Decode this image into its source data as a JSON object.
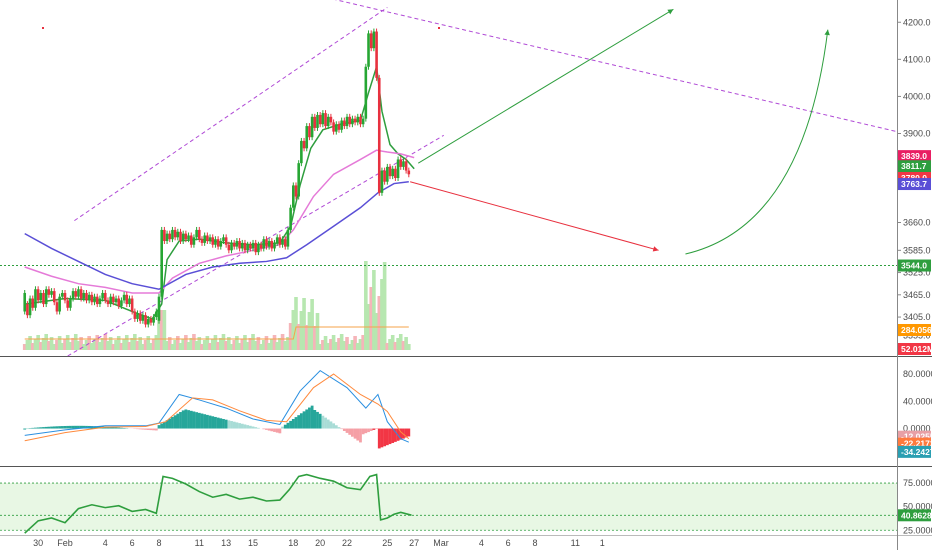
{
  "chart_data": [
    {
      "type": "candlestick",
      "panel": "price",
      "ylim": [
        3300,
        4260
      ],
      "y_ticks": [
        "4200.0",
        "4100.0",
        "4000.0",
        "3900.0",
        "3660.0",
        "3585.0",
        "3525.0",
        "3465.0",
        "3405.0",
        "3355.0"
      ],
      "y_tick_values": [
        4200,
        4100,
        4000,
        3900,
        3660,
        3585,
        3525,
        3465,
        3405,
        3355
      ],
      "x_labels": [
        "30",
        "Feb",
        "4",
        "6",
        "8",
        "11",
        "13",
        "15",
        "18",
        "20",
        "22",
        "25",
        "27",
        "Mar",
        "4",
        "6",
        "8",
        "11",
        "1"
      ],
      "x_label_days": [
        -2,
        0,
        3,
        5,
        7,
        10,
        12,
        14,
        17,
        19,
        21,
        24,
        26,
        28,
        31,
        33,
        35,
        38,
        40
      ],
      "candles": [
        [
          -3.0,
          3420,
          3470
        ],
        [
          -2.8,
          3440,
          3410
        ],
        [
          -2.6,
          3410,
          3455
        ],
        [
          -2.4,
          3455,
          3430
        ],
        [
          -2.2,
          3430,
          3480
        ],
        [
          -2.0,
          3480,
          3450
        ],
        [
          -1.8,
          3450,
          3470
        ],
        [
          -1.6,
          3470,
          3440
        ],
        [
          -1.4,
          3440,
          3480
        ],
        [
          -1.2,
          3480,
          3465
        ],
        [
          -1.0,
          3465,
          3475
        ],
        [
          -0.8,
          3475,
          3445
        ],
        [
          -0.6,
          3445,
          3420
        ],
        [
          -0.4,
          3420,
          3460
        ],
        [
          -0.2,
          3460,
          3470
        ],
        [
          0.0,
          3470,
          3450
        ],
        [
          0.2,
          3450,
          3430
        ],
        [
          0.4,
          3430,
          3455
        ],
        [
          0.6,
          3455,
          3475
        ],
        [
          0.8,
          3475,
          3460
        ],
        [
          1.0,
          3460,
          3480
        ],
        [
          1.2,
          3480,
          3455
        ],
        [
          1.4,
          3455,
          3470
        ],
        [
          1.6,
          3470,
          3450
        ],
        [
          1.8,
          3450,
          3465
        ],
        [
          2.0,
          3465,
          3445
        ],
        [
          2.2,
          3445,
          3460
        ],
        [
          2.4,
          3460,
          3440
        ],
        [
          2.6,
          3440,
          3455
        ],
        [
          2.8,
          3455,
          3470
        ],
        [
          3.0,
          3470,
          3450
        ],
        [
          3.2,
          3450,
          3440
        ],
        [
          3.4,
          3440,
          3460
        ],
        [
          3.6,
          3460,
          3445
        ],
        [
          3.8,
          3445,
          3455
        ],
        [
          4.0,
          3455,
          3435
        ],
        [
          4.2,
          3435,
          3450
        ],
        [
          4.4,
          3450,
          3465
        ],
        [
          4.6,
          3465,
          3440
        ],
        [
          4.8,
          3440,
          3455
        ],
        [
          5.0,
          3455,
          3420
        ],
        [
          5.2,
          3420,
          3400
        ],
        [
          5.4,
          3400,
          3415
        ],
        [
          5.6,
          3415,
          3395
        ],
        [
          5.8,
          3395,
          3410
        ],
        [
          6.0,
          3410,
          3385
        ],
        [
          6.2,
          3385,
          3400
        ],
        [
          6.4,
          3400,
          3390
        ],
        [
          6.6,
          3390,
          3405
        ],
        [
          6.8,
          3405,
          3420
        ],
        [
          7.0,
          3395,
          3460
        ],
        [
          7.2,
          3460,
          3640
        ],
        [
          7.4,
          3640,
          3610
        ],
        [
          7.6,
          3610,
          3630
        ],
        [
          7.8,
          3630,
          3615
        ],
        [
          8.0,
          3615,
          3640
        ],
        [
          8.2,
          3640,
          3620
        ],
        [
          8.4,
          3620,
          3635
        ],
        [
          8.6,
          3635,
          3610
        ],
        [
          8.8,
          3610,
          3630
        ],
        [
          9.0,
          3630,
          3615
        ],
        [
          9.2,
          3615,
          3625
        ],
        [
          9.4,
          3625,
          3600
        ],
        [
          9.6,
          3600,
          3620
        ],
        [
          9.8,
          3620,
          3640
        ],
        [
          10.0,
          3640,
          3615
        ],
        [
          10.2,
          3615,
          3605
        ],
        [
          10.4,
          3605,
          3625
        ],
        [
          10.6,
          3625,
          3610
        ],
        [
          10.8,
          3610,
          3620
        ],
        [
          11.0,
          3620,
          3600
        ],
        [
          11.2,
          3600,
          3615
        ],
        [
          11.4,
          3615,
          3595
        ],
        [
          11.6,
          3595,
          3610
        ],
        [
          11.8,
          3610,
          3620
        ],
        [
          12.0,
          3620,
          3600
        ],
        [
          12.2,
          3600,
          3585
        ],
        [
          12.4,
          3585,
          3605
        ],
        [
          12.6,
          3605,
          3595
        ],
        [
          12.8,
          3595,
          3610
        ],
        [
          13.0,
          3610,
          3590
        ],
        [
          13.2,
          3590,
          3605
        ],
        [
          13.4,
          3605,
          3585
        ],
        [
          13.6,
          3585,
          3600
        ],
        [
          13.8,
          3600,
          3590
        ],
        [
          14.0,
          3590,
          3605
        ],
        [
          14.2,
          3605,
          3580
        ],
        [
          14.4,
          3580,
          3600
        ],
        [
          14.6,
          3600,
          3590
        ],
        [
          14.8,
          3590,
          3615
        ],
        [
          15.0,
          3615,
          3595
        ],
        [
          15.2,
          3595,
          3610
        ],
        [
          15.4,
          3610,
          3590
        ],
        [
          15.6,
          3590,
          3605
        ],
        [
          15.8,
          3605,
          3620
        ],
        [
          16.0,
          3620,
          3600
        ],
        [
          16.2,
          3600,
          3615
        ],
        [
          16.4,
          3615,
          3595
        ],
        [
          16.6,
          3595,
          3640
        ],
        [
          16.8,
          3640,
          3700
        ],
        [
          17.0,
          3700,
          3760
        ],
        [
          17.2,
          3760,
          3730
        ],
        [
          17.4,
          3730,
          3820
        ],
        [
          17.6,
          3820,
          3880
        ],
        [
          17.8,
          3880,
          3860
        ],
        [
          18.0,
          3860,
          3920
        ],
        [
          18.2,
          3920,
          3890
        ],
        [
          18.4,
          3890,
          3945
        ],
        [
          18.6,
          3945,
          3915
        ],
        [
          18.8,
          3915,
          3950
        ],
        [
          19.0,
          3950,
          3925
        ],
        [
          19.2,
          3925,
          3955
        ],
        [
          19.4,
          3955,
          3920
        ],
        [
          19.6,
          3920,
          3945
        ],
        [
          19.8,
          3945,
          3930
        ],
        [
          20.0,
          3930,
          3905
        ],
        [
          20.2,
          3905,
          3925
        ],
        [
          20.4,
          3925,
          3910
        ],
        [
          20.6,
          3910,
          3935
        ],
        [
          20.8,
          3935,
          3920
        ],
        [
          21.0,
          3920,
          3945
        ],
        [
          21.2,
          3945,
          3925
        ],
        [
          21.4,
          3925,
          3940
        ],
        [
          21.6,
          3940,
          3930
        ],
        [
          21.8,
          3930,
          3945
        ],
        [
          22.0,
          3945,
          3925
        ],
        [
          22.2,
          3925,
          3940
        ],
        [
          22.4,
          3940,
          4080
        ],
        [
          22.6,
          4080,
          4170
        ],
        [
          22.8,
          4170,
          4130
        ],
        [
          23.0,
          4130,
          4175
        ],
        [
          23.2,
          4175,
          4050
        ],
        [
          23.4,
          4050,
          3740
        ],
        [
          23.6,
          3740,
          3800
        ],
        [
          23.8,
          3800,
          3770
        ],
        [
          24.0,
          3770,
          3810
        ],
        [
          24.2,
          3810,
          3785
        ],
        [
          24.4,
          3785,
          3805
        ],
        [
          24.6,
          3805,
          3780
        ],
        [
          24.8,
          3780,
          3830
        ],
        [
          25.0,
          3830,
          3810
        ],
        [
          25.2,
          3810,
          3825
        ],
        [
          25.4,
          3825,
          3800
        ],
        [
          25.6,
          3800,
          3790
        ]
      ],
      "series": [
        {
          "name": "",
          "color": "#2e9e3e",
          "points": [
            [
              -3,
              3440
            ],
            [
              0,
              3455
            ],
            [
              3,
              3450
            ],
            [
              5,
              3420
            ],
            [
              6.5,
              3400
            ],
            [
              7.2,
              3440
            ],
            [
              7.6,
              3560
            ],
            [
              8.5,
              3610
            ],
            [
              10,
              3615
            ],
            [
              12,
              3605
            ],
            [
              14,
              3600
            ],
            [
              16,
              3605
            ],
            [
              16.8,
              3650
            ],
            [
              17.5,
              3760
            ],
            [
              18.3,
              3860
            ],
            [
              19.2,
              3910
            ],
            [
              20.5,
              3925
            ],
            [
              22,
              3935
            ],
            [
              22.6,
              4010
            ],
            [
              23.2,
              4080
            ],
            [
              23.6,
              3960
            ],
            [
              24.2,
              3870
            ],
            [
              24.8,
              3845
            ],
            [
              25.4,
              3830
            ],
            [
              26,
              3805
            ]
          ]
        },
        {
          "name": "",
          "color": "#e57ad8",
          "points": [
            [
              -3,
              3540
            ],
            [
              -1,
              3515
            ],
            [
              1,
              3495
            ],
            [
              3,
              3485
            ],
            [
              5,
              3470
            ],
            [
              7,
              3470
            ],
            [
              8,
              3510
            ],
            [
              10,
              3550
            ],
            [
              12,
              3570
            ],
            [
              14,
              3585
            ],
            [
              16,
              3600
            ],
            [
              17,
              3640
            ],
            [
              18.5,
              3730
            ],
            [
              20,
              3790
            ],
            [
              22,
              3830
            ],
            [
              23.2,
              3855
            ],
            [
              24,
              3850
            ],
            [
              25,
              3845
            ],
            [
              26,
              3835
            ]
          ]
        },
        {
          "name": "",
          "color": "#5a4fd6",
          "points": [
            [
              -3,
              3630
            ],
            [
              -1,
              3590
            ],
            [
              1,
              3555
            ],
            [
              3,
              3520
            ],
            [
              5,
              3495
            ],
            [
              7,
              3480
            ],
            [
              9,
              3520
            ],
            [
              11,
              3540
            ],
            [
              13,
              3550
            ],
            [
              15,
              3555
            ],
            [
              16.5,
              3565
            ],
            [
              18,
              3600
            ],
            [
              20,
              3650
            ],
            [
              22,
              3700
            ],
            [
              23.3,
              3740
            ],
            [
              24.5,
              3765
            ],
            [
              25.6,
              3770
            ]
          ]
        }
      ],
      "support_level": 3544.0,
      "price_tags": [
        {
          "text": "3839.0",
          "value": 3839.0,
          "color": "#e91e63"
        },
        {
          "text": "3811.7",
          "value": 3811.7,
          "color": "#2e9e3e"
        },
        {
          "text": "3780.0",
          "value": 3780.0,
          "color": "#f23645"
        },
        {
          "text": "3763.7",
          "value": 3763.7,
          "color": "#5a4fd6"
        },
        {
          "text": "3544.0",
          "value": 3544.0,
          "color": "#2e9e3e"
        }
      ],
      "volume": {
        "tags": [
          {
            "text": "284.056M",
            "color": "#ff9800"
          },
          {
            "text": "52.012M",
            "color": "#f23645"
          }
        ]
      }
    },
    {
      "type": "macd",
      "panel": "macd",
      "ylim": [
        -55,
        105
      ],
      "y_ticks": [
        "80.0000",
        "40.0000",
        "0.0000"
      ],
      "y_tick_values": [
        80,
        40,
        0
      ],
      "tags": [
        {
          "text": "-12.0255",
          "value": -12.0255,
          "color": "#e8a0a6"
        },
        {
          "text": "-22.2172",
          "value": -22.2172,
          "color": "#ff7a3d"
        },
        {
          "text": "-34.2427",
          "value": -34.2427,
          "color": "#2a9fb2"
        }
      ]
    },
    {
      "type": "line",
      "panel": "rsi",
      "ylim": [
        20,
        92
      ],
      "y_ticks": [
        "75.0000",
        "50.0000",
        "25.0000"
      ],
      "y_tick_values": [
        75,
        50,
        25
      ],
      "band": [
        25,
        75
      ],
      "tag": {
        "text": "40.8628",
        "value": 40.8628,
        "color": "#2e9e3e"
      },
      "values": [
        [
          -3,
          22
        ],
        [
          -2,
          35
        ],
        [
          -1,
          38
        ],
        [
          0,
          33
        ],
        [
          1,
          48
        ],
        [
          2,
          52
        ],
        [
          3,
          49
        ],
        [
          4,
          51
        ],
        [
          5,
          45
        ],
        [
          6,
          47
        ],
        [
          6.8,
          43
        ],
        [
          7.3,
          82
        ],
        [
          8,
          80
        ],
        [
          9,
          74
        ],
        [
          9.5,
          70
        ],
        [
          10,
          66
        ],
        [
          11,
          60
        ],
        [
          12,
          63
        ],
        [
          13,
          58
        ],
        [
          14,
          60
        ],
        [
          15,
          56
        ],
        [
          16,
          57
        ],
        [
          16.7,
          68
        ],
        [
          17.4,
          82
        ],
        [
          18,
          84
        ],
        [
          19,
          80
        ],
        [
          20,
          77
        ],
        [
          21,
          70
        ],
        [
          22,
          68
        ],
        [
          22.7,
          82
        ],
        [
          23.2,
          84
        ],
        [
          23.5,
          36
        ],
        [
          24,
          38
        ],
        [
          24.5,
          42
        ],
        [
          25,
          44
        ],
        [
          25.8,
          41
        ]
      ]
    }
  ]
}
